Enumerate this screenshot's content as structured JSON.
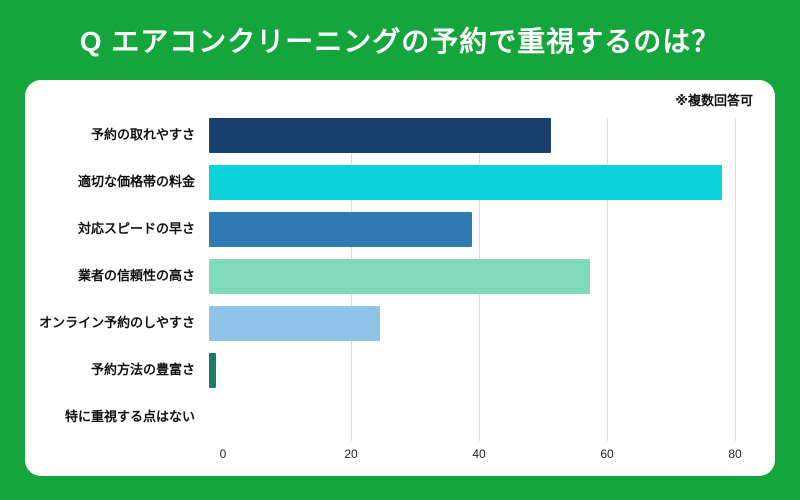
{
  "page": {
    "title": "Q エアコンクリーニングの予約で重視するのは？",
    "note": "※複数回答可"
  },
  "chart_data": {
    "type": "bar",
    "orientation": "horizontal",
    "title": "Q エアコンクリーニングの予約で重視するのは？",
    "note": "※複数回答可",
    "categories": [
      "予約の取れやすさ",
      "適切な価格帯の料金",
      "対応スピードの早さ",
      "業者の信頼性の高さ",
      "オンライン予約のしやすさ",
      "予約方法の豊富さ",
      "特に重視する点はない"
    ],
    "values": [
      52,
      78,
      40,
      58,
      26,
      1,
      0
    ],
    "bar_colors": [
      "#18406F",
      "#0BD3DE",
      "#2F7AB3",
      "#7FD9BA",
      "#8FC3EA",
      "#1E7B69",
      "#1E7B69"
    ],
    "xlim": [
      0,
      80
    ],
    "x_ticks": [
      0,
      20,
      40,
      60,
      80
    ],
    "xlabel": "",
    "ylabel": "",
    "grid": "vertical",
    "legend": "none",
    "colors": {
      "page_background": "#14A53C",
      "card_background": "#FFFFFF",
      "gridline": "#DCDCDC",
      "title_text": "#FFFFFF",
      "label_text": "#111111"
    }
  }
}
